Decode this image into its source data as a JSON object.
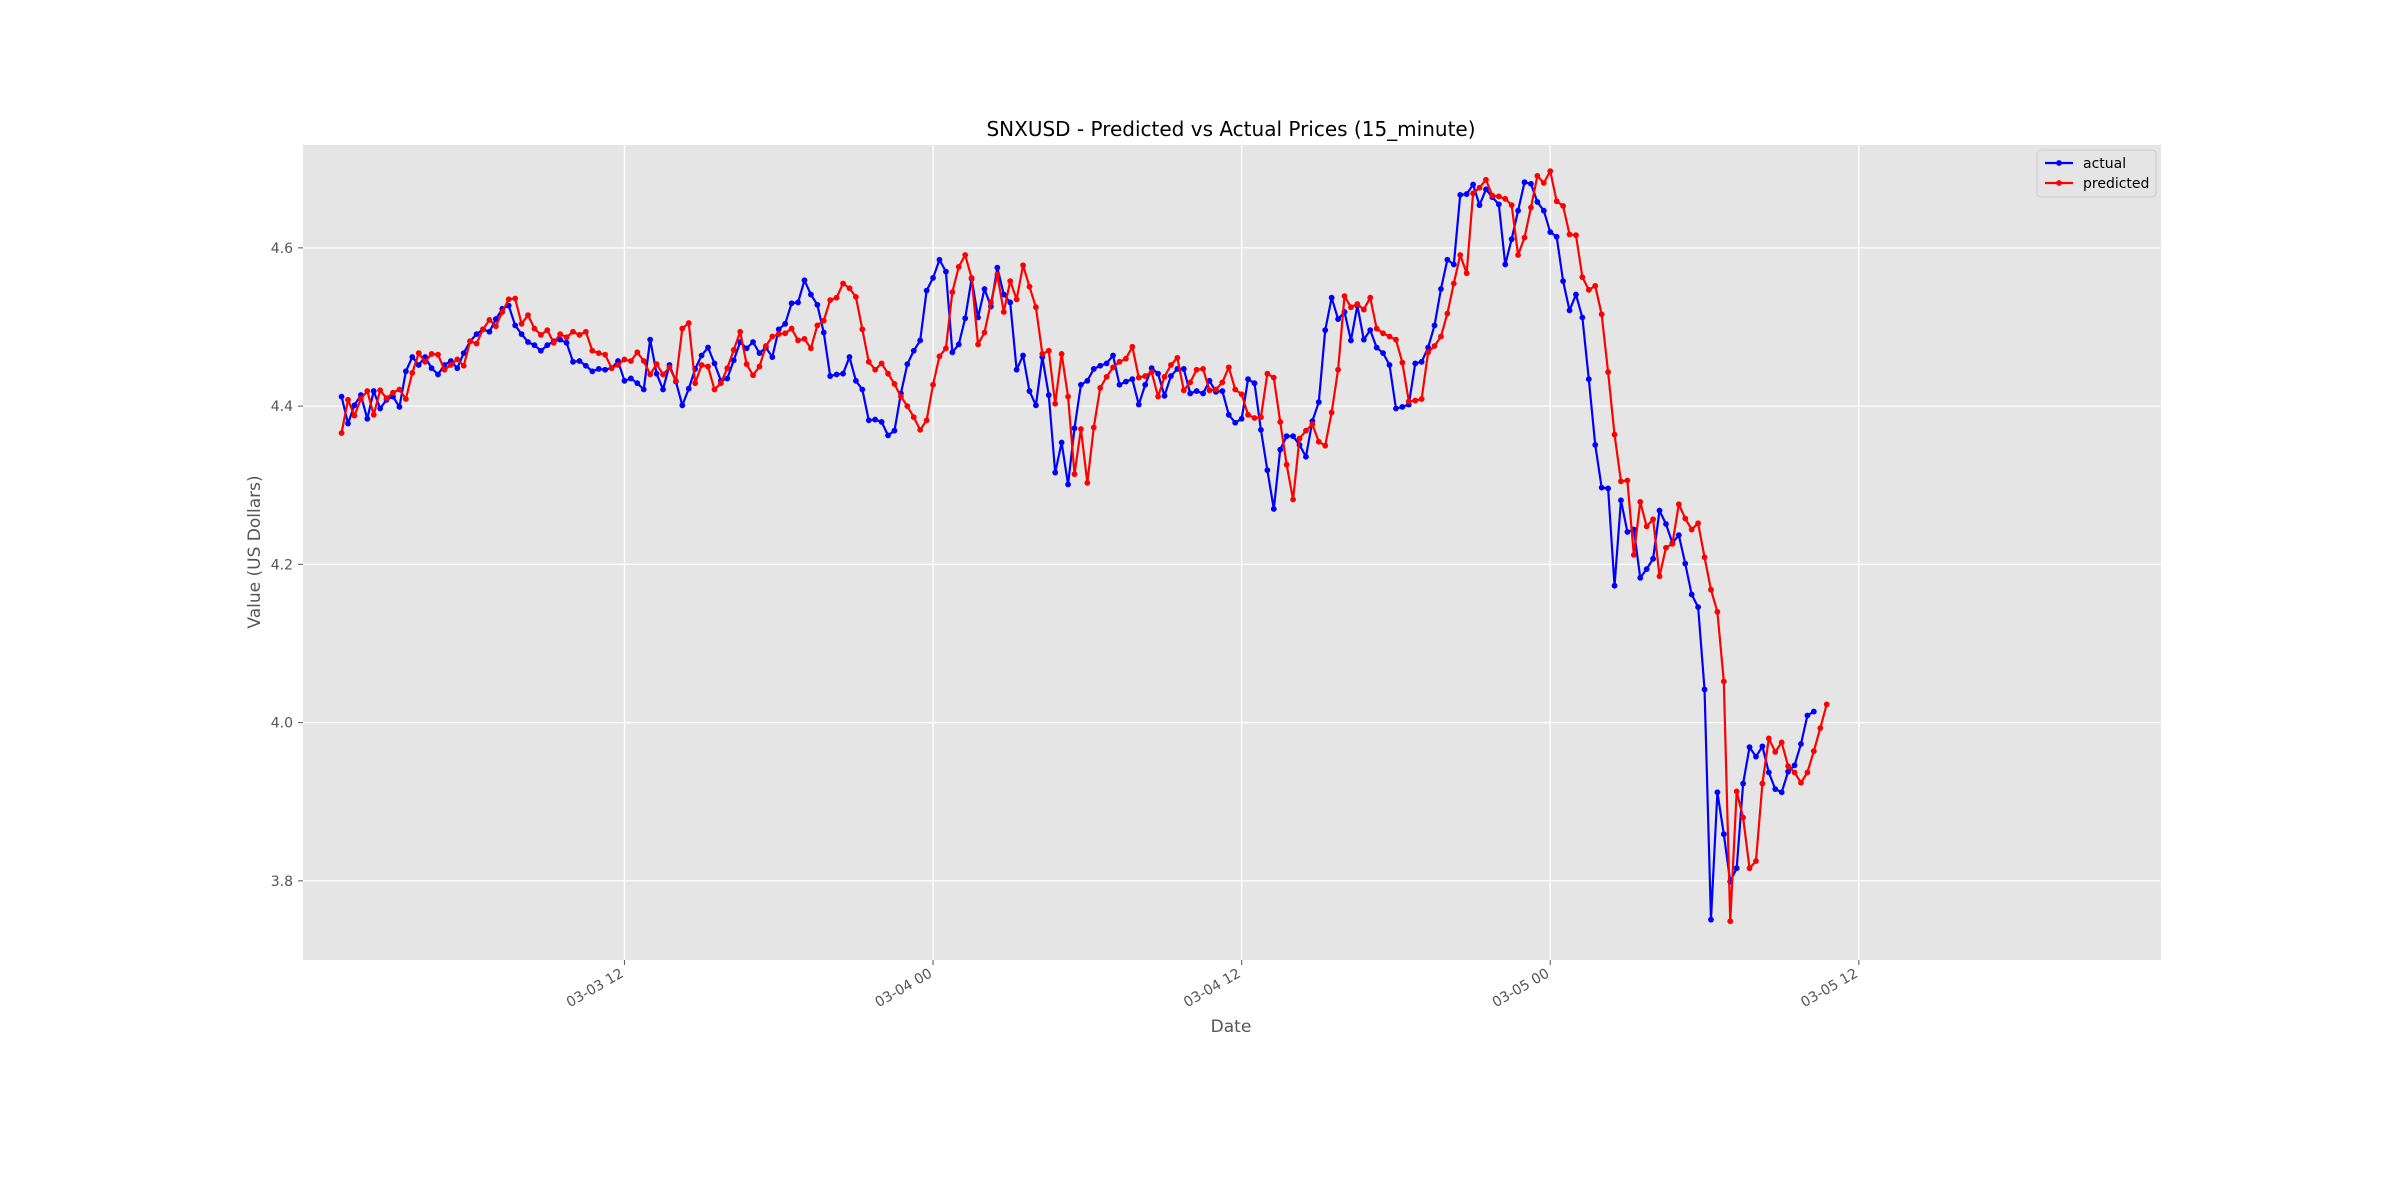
{
  "chart_data": {
    "type": "line",
    "title": "SNXUSD - Predicted vs Actual Prices (15_minute)",
    "xlabel": "Date",
    "ylabel": "Value (US Dollars)",
    "x_start": "2025-03-03 01:00",
    "x_step_minutes": 15,
    "xlim": [
      "2025-03-02 23:30",
      "2025-03-05 23:45"
    ],
    "ylim": [
      3.7,
      4.73
    ],
    "x_ticks": [
      {
        "value": "2025-03-03 12:00",
        "label": "03-03 12"
      },
      {
        "value": "2025-03-04 00:00",
        "label": "03-04 00"
      },
      {
        "value": "2025-03-04 12:00",
        "label": "03-04 12"
      },
      {
        "value": "2025-03-05 00:00",
        "label": "03-05 00"
      },
      {
        "value": "2025-03-05 12:00",
        "label": "03-05 12"
      }
    ],
    "y_ticks": [
      3.8,
      4.0,
      4.2,
      4.4,
      4.6
    ],
    "grid": true,
    "legend_position": "upper right",
    "series": [
      {
        "name": "actual",
        "color": "#0000ff",
        "values": [
          4.412,
          4.378,
          4.401,
          4.414,
          4.384,
          4.419,
          4.397,
          4.408,
          4.412,
          4.399,
          4.444,
          4.462,
          4.452,
          4.462,
          4.448,
          4.44,
          4.452,
          4.457,
          4.448,
          4.467,
          4.482,
          4.491,
          4.497,
          4.494,
          4.51,
          4.523,
          4.527,
          4.502,
          4.491,
          4.481,
          4.477,
          4.47,
          4.477,
          4.482,
          4.484,
          4.48,
          4.456,
          4.457,
          4.451,
          4.444,
          4.447,
          4.446,
          4.448,
          4.457,
          4.432,
          4.435,
          4.429,
          4.421,
          4.484,
          4.441,
          4.421,
          4.452,
          4.431,
          4.401,
          4.422,
          4.447,
          4.464,
          4.474,
          4.454,
          4.432,
          4.435,
          4.458,
          4.481,
          4.473,
          4.481,
          4.467,
          4.474,
          4.462,
          4.497,
          4.504,
          4.53,
          4.531,
          4.559,
          4.541,
          4.528,
          4.493,
          4.438,
          4.44,
          4.441,
          4.462,
          4.432,
          4.421,
          4.382,
          4.383,
          4.38,
          4.363,
          4.369,
          4.416,
          4.453,
          4.47,
          4.483,
          4.546,
          4.562,
          4.585,
          4.57,
          4.468,
          4.478,
          4.511,
          4.561,
          4.512,
          4.548,
          4.526,
          4.575,
          4.541,
          4.531,
          4.446,
          4.464,
          4.419,
          4.401,
          4.462,
          4.414,
          4.316,
          4.354,
          4.301,
          4.372,
          4.427,
          4.432,
          4.447,
          4.451,
          4.454,
          4.464,
          4.427,
          4.431,
          4.434,
          4.402,
          4.427,
          4.448,
          4.441,
          4.413,
          4.438,
          4.447,
          4.447,
          4.416,
          4.419,
          4.416,
          4.432,
          4.418,
          4.419,
          4.389,
          4.379,
          4.384,
          4.434,
          4.429,
          4.37,
          4.319,
          4.27,
          4.345,
          4.362,
          4.362,
          4.351,
          4.336,
          4.381,
          4.405,
          4.496,
          4.537,
          4.51,
          4.519,
          4.483,
          4.527,
          4.484,
          4.496,
          4.474,
          4.467,
          4.452,
          4.397,
          4.399,
          4.402,
          4.454,
          4.456,
          4.474,
          4.502,
          4.548,
          4.585,
          4.579,
          4.667,
          4.668,
          4.68,
          4.654,
          4.674,
          4.664,
          4.655,
          4.579,
          4.611,
          4.647,
          4.683,
          4.681,
          4.658,
          4.647,
          4.62,
          4.614,
          4.558,
          4.521,
          4.541,
          4.512,
          4.434,
          4.351,
          4.297,
          4.296,
          4.173,
          4.281,
          4.241,
          4.244,
          4.183,
          4.194,
          4.207,
          4.268,
          4.251,
          4.227,
          4.237,
          4.201,
          4.162,
          4.146,
          4.042,
          3.751,
          3.912,
          3.859,
          3.799,
          3.816,
          3.923,
          3.969,
          3.957,
          3.97,
          3.937,
          3.916,
          3.912,
          3.938,
          3.946,
          3.973,
          4.009,
          4.014
        ]
      },
      {
        "name": "predicted",
        "color": "#ff0000",
        "values": [
          4.366,
          4.408,
          4.388,
          4.409,
          4.419,
          4.389,
          4.42,
          4.41,
          4.417,
          4.421,
          4.409,
          4.442,
          4.467,
          4.456,
          4.466,
          4.465,
          4.446,
          4.452,
          4.459,
          4.451,
          4.482,
          4.479,
          4.497,
          4.509,
          4.501,
          4.519,
          4.535,
          4.536,
          4.504,
          4.515,
          4.498,
          4.49,
          4.496,
          4.48,
          4.491,
          4.487,
          4.494,
          4.49,
          4.494,
          4.47,
          4.467,
          4.465,
          4.448,
          4.452,
          4.459,
          4.457,
          4.468,
          4.457,
          4.44,
          4.453,
          4.44,
          4.449,
          4.432,
          4.498,
          4.505,
          4.429,
          4.452,
          4.45,
          4.421,
          4.429,
          4.448,
          4.471,
          4.494,
          4.453,
          4.439,
          4.45,
          4.476,
          4.488,
          4.491,
          4.492,
          4.498,
          4.483,
          4.485,
          4.473,
          4.502,
          4.508,
          4.534,
          4.537,
          4.555,
          4.549,
          4.538,
          4.497,
          4.456,
          4.446,
          4.454,
          4.441,
          4.428,
          4.412,
          4.4,
          4.386,
          4.37,
          4.382,
          4.427,
          4.463,
          4.473,
          4.544,
          4.576,
          4.591,
          4.562,
          4.478,
          4.493,
          4.531,
          4.566,
          4.519,
          4.558,
          4.535,
          4.578,
          4.551,
          4.525,
          4.466,
          4.47,
          4.403,
          4.466,
          4.412,
          4.314,
          4.371,
          4.303,
          4.373,
          4.423,
          4.437,
          4.449,
          4.456,
          4.46,
          4.475,
          4.436,
          4.438,
          4.443,
          4.412,
          4.437,
          4.452,
          4.461,
          4.42,
          4.43,
          4.446,
          4.447,
          4.42,
          4.421,
          4.43,
          4.449,
          4.421,
          4.415,
          4.389,
          4.385,
          4.386,
          4.441,
          4.436,
          4.38,
          4.326,
          4.282,
          4.359,
          4.369,
          4.377,
          4.355,
          4.35,
          4.392,
          4.446,
          4.539,
          4.525,
          4.529,
          4.522,
          4.537,
          4.498,
          4.492,
          4.488,
          4.484,
          4.455,
          4.406,
          4.407,
          4.409,
          4.468,
          4.476,
          4.488,
          4.517,
          4.555,
          4.591,
          4.568,
          4.669,
          4.676,
          4.686,
          4.666,
          4.665,
          4.662,
          4.654,
          4.591,
          4.613,
          4.651,
          4.691,
          4.682,
          4.697,
          4.659,
          4.653,
          4.617,
          4.616,
          4.563,
          4.547,
          4.552,
          4.516,
          4.443,
          4.364,
          4.305,
          4.306,
          4.212,
          4.279,
          4.248,
          4.257,
          4.185,
          4.221,
          4.226,
          4.276,
          4.258,
          4.244,
          4.252,
          4.209,
          4.168,
          4.14,
          4.052,
          3.749,
          3.913,
          3.88,
          3.816,
          3.825,
          3.923,
          3.98,
          3.963,
          3.975,
          3.945,
          3.937,
          3.924,
          3.937,
          3.964,
          3.993,
          4.023
        ]
      }
    ]
  }
}
